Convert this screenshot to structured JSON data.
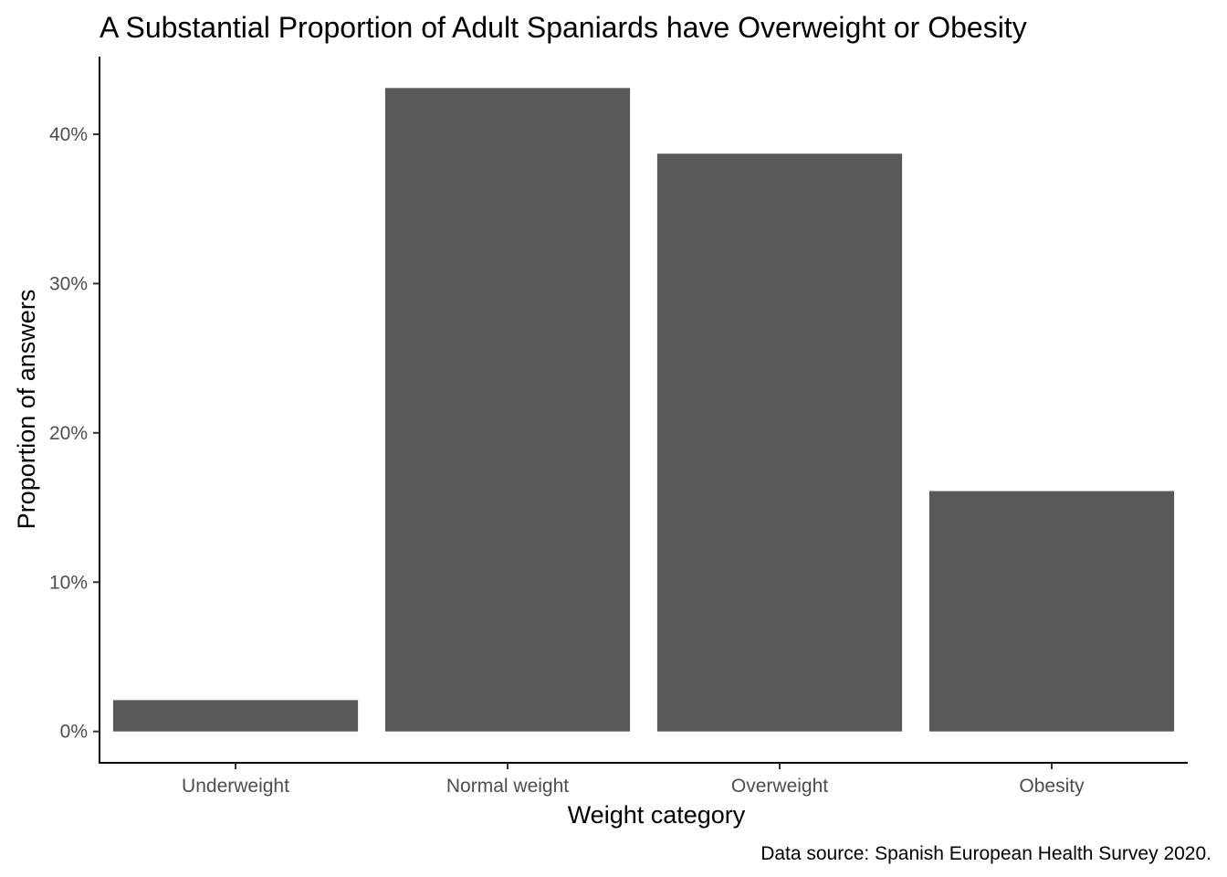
{
  "chart_data": {
    "type": "bar",
    "title": "A Substantial Proportion of Adult Spaniards have Overweight or Obesity",
    "xlabel": "Weight category",
    "ylabel": "Proportion of answers",
    "caption": "Data source: Spanish European Health Survey 2020.",
    "categories": [
      "Underweight",
      "Normal weight",
      "Overweight",
      "Obesity"
    ],
    "values": [
      2.1,
      43.1,
      38.7,
      16.1
    ],
    "ylim": [
      -2.1,
      45.2
    ],
    "y_ticks": [
      0,
      10,
      20,
      30,
      40
    ],
    "y_tick_labels": [
      "0%",
      "10%",
      "20%",
      "30%",
      "40%"
    ],
    "bar_color": "#595959",
    "grid": false,
    "legend": "none"
  }
}
